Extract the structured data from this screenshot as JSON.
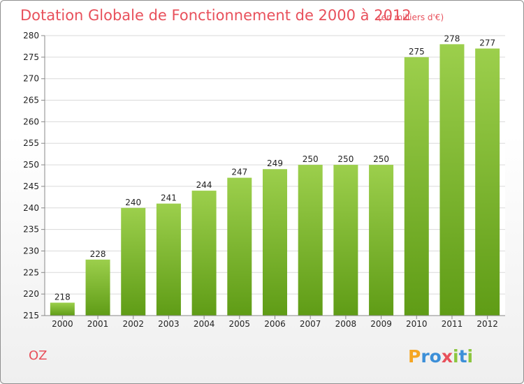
{
  "chart_data": {
    "type": "bar",
    "title": "Dotation Globale de Fonctionnement de 2000 à 2012",
    "subtitle": "(en milliers d'€)",
    "categories": [
      "2000",
      "2001",
      "2002",
      "2003",
      "2004",
      "2005",
      "2006",
      "2007",
      "2008",
      "2009",
      "2010",
      "2011",
      "2012"
    ],
    "values": [
      218,
      228,
      240,
      241,
      244,
      247,
      249,
      250,
      250,
      250,
      275,
      278,
      277
    ],
    "ylim": [
      215,
      280
    ],
    "yticks": [
      215,
      220,
      225,
      230,
      235,
      240,
      245,
      250,
      255,
      260,
      265,
      270,
      275,
      280
    ],
    "grid": true,
    "legend": "none",
    "colors": {
      "bar_top": "#9ccf4c",
      "bar_bottom": "#5f9c16",
      "title": "#e8505b"
    }
  },
  "commune": "OZ",
  "logo": {
    "text": "Proxiti",
    "letters": [
      {
        "ch": "P",
        "color": "#f5a623"
      },
      {
        "ch": "r",
        "color": "#3c8fd8"
      },
      {
        "ch": "o",
        "color": "#3c8fd8"
      },
      {
        "ch": "x",
        "color": "#e8505b"
      },
      {
        "ch": "i",
        "color": "#8cc63f"
      },
      {
        "ch": "t",
        "color": "#3c8fd8"
      },
      {
        "ch": "i",
        "color": "#8cc63f"
      }
    ]
  }
}
